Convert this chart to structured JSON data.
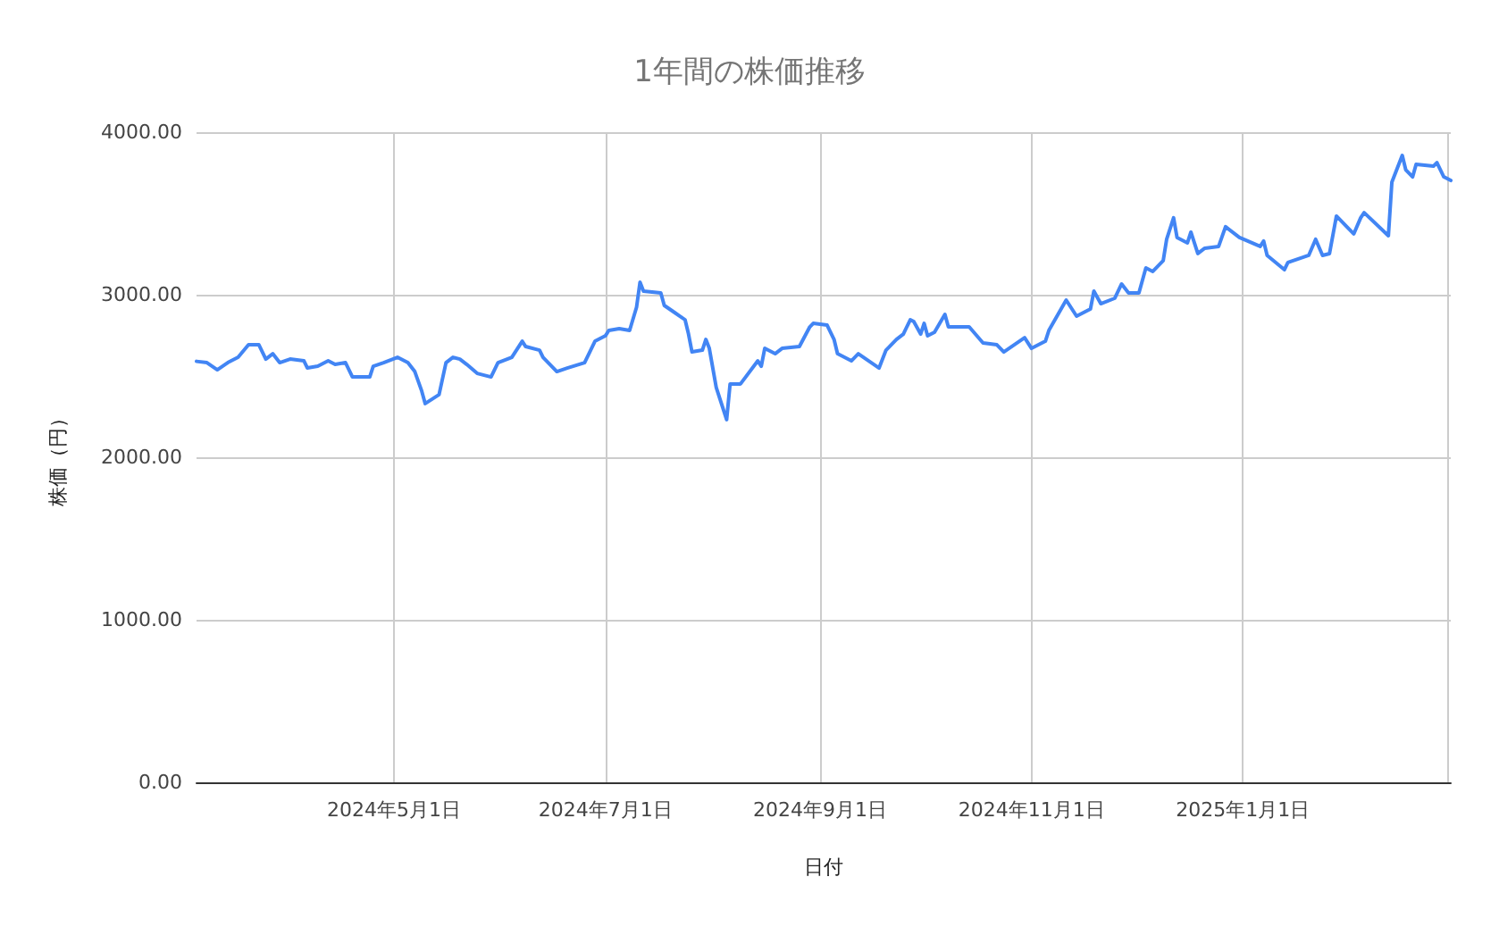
{
  "chart_data": {
    "type": "line",
    "title": "1年間の株価推移",
    "xlabel": "日付",
    "ylabel": "株価（円）",
    "x": [
      "2024-03-05",
      "2024-03-08",
      "2024-03-11",
      "2024-03-14",
      "2024-03-17",
      "2024-03-20",
      "2024-03-23",
      "2024-03-25",
      "2024-03-27",
      "2024-03-29",
      "2024-04-01",
      "2024-04-05",
      "2024-04-06",
      "2024-04-09",
      "2024-04-11",
      "2024-04-12",
      "2024-04-14",
      "2024-04-17",
      "2024-04-19",
      "2024-04-24",
      "2024-04-25",
      "2024-04-28",
      "2024-05-02",
      "2024-05-05",
      "2024-05-07",
      "2024-05-09",
      "2024-05-10",
      "2024-05-14",
      "2024-05-16",
      "2024-05-18",
      "2024-05-20",
      "2024-05-22",
      "2024-05-25",
      "2024-05-29",
      "2024-05-31",
      "2024-06-04",
      "2024-06-07",
      "2024-06-08",
      "2024-06-12",
      "2024-06-13",
      "2024-06-17",
      "2024-06-20",
      "2024-06-25",
      "2024-06-28",
      "2024-07-01",
      "2024-07-02",
      "2024-07-05",
      "2024-07-08",
      "2024-07-10",
      "2024-07-11",
      "2024-07-12",
      "2024-07-17",
      "2024-07-18",
      "2024-07-21",
      "2024-07-24",
      "2024-07-25",
      "2024-07-26",
      "2024-07-29",
      "2024-07-30",
      "2024-07-31",
      "2024-08-02",
      "2024-08-05",
      "2024-08-06",
      "2024-08-09",
      "2024-08-14",
      "2024-08-15",
      "2024-08-16",
      "2024-08-19",
      "2024-08-21",
      "2024-08-26",
      "2024-08-29",
      "2024-08-30",
      "2024-09-03",
      "2024-09-05",
      "2024-09-06",
      "2024-09-10",
      "2024-09-12",
      "2024-09-15",
      "2024-09-18",
      "2024-09-20",
      "2024-09-23",
      "2024-09-25",
      "2024-09-27",
      "2024-09-28",
      "2024-09-30",
      "2024-10-01",
      "2024-10-02",
      "2024-10-04",
      "2024-10-07",
      "2024-10-08",
      "2024-10-14",
      "2024-10-18",
      "2024-10-22",
      "2024-10-24",
      "2024-10-30",
      "2024-11-01",
      "2024-11-05",
      "2024-11-06",
      "2024-11-11",
      "2024-11-14",
      "2024-11-18",
      "2024-11-19",
      "2024-11-21",
      "2024-11-25",
      "2024-11-27",
      "2024-11-29",
      "2024-12-02",
      "2024-12-04",
      "2024-12-06",
      "2024-12-09",
      "2024-12-10",
      "2024-12-12",
      "2024-12-13",
      "2024-12-16",
      "2024-12-17",
      "2024-12-19",
      "2024-12-21",
      "2024-12-25",
      "2024-12-27",
      "2024-12-31",
      "2025-01-06",
      "2025-01-07",
      "2025-01-08",
      "2025-01-13",
      "2025-01-14",
      "2025-01-20",
      "2025-01-22",
      "2025-01-24",
      "2025-01-26",
      "2025-01-28",
      "2025-02-02",
      "2025-02-04",
      "2025-02-05",
      "2025-02-12",
      "2025-02-13",
      "2025-02-16",
      "2025-02-17",
      "2025-02-19",
      "2025-02-20",
      "2025-02-25",
      "2025-02-26",
      "2025-02-28",
      "2025-03-02"
    ],
    "series": [
      {
        "color": "#4285f4",
        "values": [
          2590,
          2582,
          2538,
          2582,
          2615,
          2692,
          2692,
          2604,
          2637,
          2582,
          2604,
          2593,
          2549,
          2560,
          2582,
          2593,
          2571,
          2582,
          2494,
          2494,
          2560,
          2582,
          2615,
          2582,
          2527,
          2407,
          2330,
          2385,
          2582,
          2615,
          2604,
          2571,
          2516,
          2494,
          2582,
          2615,
          2714,
          2681,
          2659,
          2615,
          2527,
          2549,
          2582,
          2714,
          2747,
          2780,
          2791,
          2780,
          2923,
          3077,
          3022,
          3011,
          2934,
          2890,
          2846,
          2758,
          2648,
          2659,
          2725,
          2670,
          2429,
          2231,
          2451,
          2451,
          2593,
          2560,
          2670,
          2637,
          2670,
          2681,
          2802,
          2824,
          2813,
          2725,
          2637,
          2593,
          2637,
          2593,
          2549,
          2659,
          2725,
          2758,
          2846,
          2835,
          2758,
          2824,
          2747,
          2769,
          2879,
          2802,
          2802,
          2703,
          2692,
          2648,
          2736,
          2670,
          2714,
          2780,
          2967,
          2868,
          2912,
          3022,
          2945,
          2978,
          3066,
          3011,
          3011,
          3165,
          3143,
          3209,
          3341,
          3473,
          3352,
          3319,
          3385,
          3253,
          3286,
          3297,
          3418,
          3352,
          3297,
          3330,
          3242,
          3154,
          3198,
          3242,
          3341,
          3242,
          3253,
          3484,
          3374,
          3473,
          3505,
          3363,
          3692,
          3857,
          3769,
          3725,
          3802,
          3791,
          3813,
          3725,
          3703
        ]
      }
    ],
    "xlim": [
      "2024-03-05",
      "2025-03-02"
    ],
    "xticks": [
      {
        "value": "2024-05-01",
        "label": "2024年5月1日"
      },
      {
        "value": "2024-07-01",
        "label": "2024年7月1日"
      },
      {
        "value": "2024-09-01",
        "label": "2024年9月1日"
      },
      {
        "value": "2024-11-01",
        "label": "2024年11月1日"
      },
      {
        "value": "2025-01-01",
        "label": "2025年1月1日"
      },
      {
        "value": "2025-03-01",
        "label": null
      }
    ],
    "ylim": [
      0,
      4000
    ],
    "yticks": [
      {
        "value": 0,
        "label": "0.00"
      },
      {
        "value": 1000,
        "label": "1000.00"
      },
      {
        "value": 2000,
        "label": "2000.00"
      },
      {
        "value": 3000,
        "label": "3000.00"
      },
      {
        "value": 4000,
        "label": "4000.00"
      }
    ],
    "grid": true,
    "marker": "none",
    "line_style": "solid"
  }
}
